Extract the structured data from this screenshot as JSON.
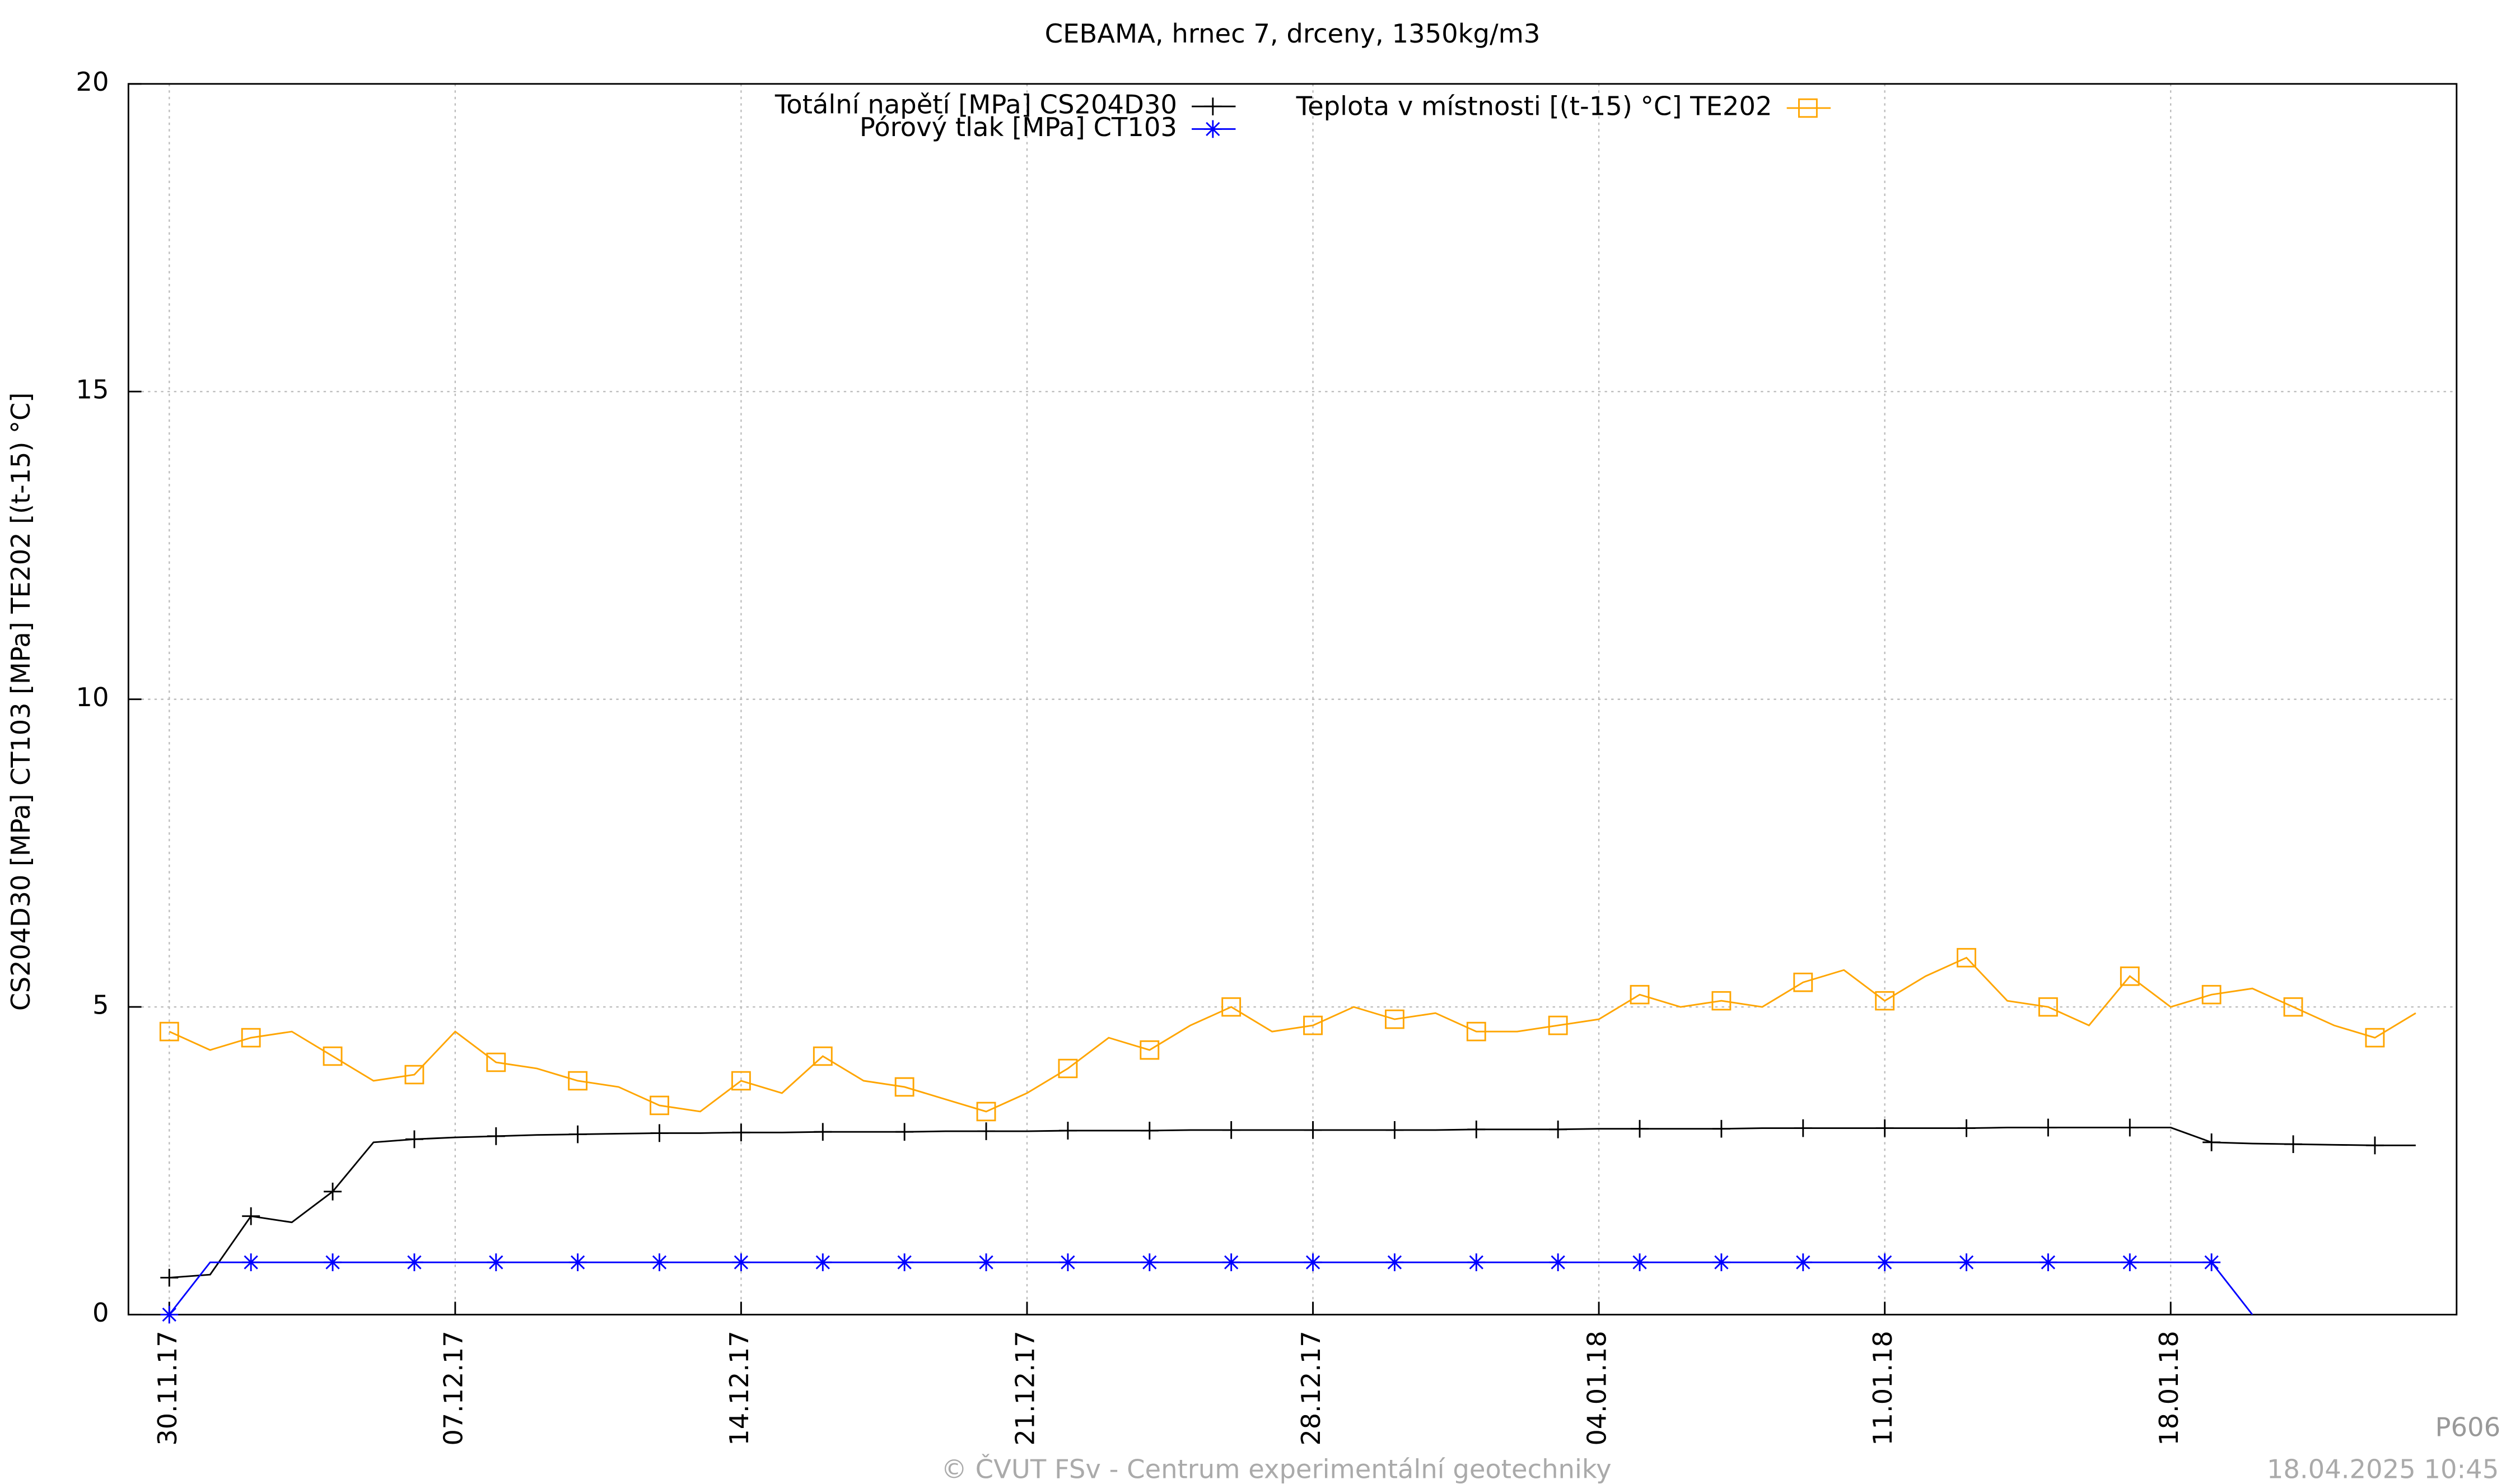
{
  "chart_data": {
    "type": "line",
    "title": "CEBAMA, hrnec 7, drceny, 1350kg/m3",
    "y_label": "CS204D30 [MPa] CT103 [MPa] TE202 [(t-15) °C]",
    "watermark": "P606",
    "footer": "© ČVUT FSv - Centrum experimentální geotechniky",
    "timestamp": "18.04.2025 10:45",
    "x": [
      "30.11.17",
      "01.12.17",
      "02.12.17",
      "03.12.17",
      "04.12.17",
      "05.12.17",
      "06.12.17",
      "07.12.17",
      "08.12.17",
      "09.12.17",
      "10.12.17",
      "11.12.17",
      "12.12.17",
      "13.12.17",
      "14.12.17",
      "15.12.17",
      "16.12.17",
      "17.12.17",
      "18.12.17",
      "19.12.17",
      "20.12.17",
      "21.12.17",
      "22.12.17",
      "23.12.17",
      "24.12.17",
      "25.12.17",
      "26.12.17",
      "27.12.17",
      "28.12.17",
      "29.12.17",
      "30.12.17",
      "31.12.17",
      "01.01.18",
      "02.01.18",
      "03.01.18",
      "04.01.18",
      "05.01.18",
      "06.01.18",
      "07.01.18",
      "08.01.18",
      "09.01.18",
      "10.01.18",
      "11.01.18",
      "12.01.18",
      "13.01.18",
      "14.01.18",
      "15.01.18",
      "16.01.18",
      "17.01.18",
      "18.01.18",
      "19.01.18",
      "20.01.18",
      "21.01.18",
      "22.01.18",
      "23.01.18",
      "24.01.18"
    ],
    "series": [
      {
        "name": "Totální napětí [MPa] CS204D30",
        "color": "#000000",
        "marker": "plus",
        "values": [
          0.6,
          0.65,
          1.6,
          1.5,
          2.0,
          2.8,
          2.85,
          2.88,
          2.9,
          2.92,
          2.93,
          2.94,
          2.95,
          2.95,
          2.96,
          2.96,
          2.97,
          2.97,
          2.97,
          2.98,
          2.98,
          2.98,
          2.99,
          2.99,
          2.99,
          3.0,
          3.0,
          3.0,
          3.0,
          3.0,
          3.0,
          3.0,
          3.01,
          3.01,
          3.01,
          3.02,
          3.02,
          3.02,
          3.02,
          3.03,
          3.03,
          3.03,
          3.03,
          3.03,
          3.03,
          3.04,
          3.04,
          3.04,
          3.04,
          3.04,
          2.8,
          2.78,
          2.77,
          2.76,
          2.75,
          2.75
        ]
      },
      {
        "name": "Pórový tlak [MPa] CT103",
        "color": "#0000ff",
        "marker": "star",
        "values": [
          0,
          0.85,
          0.85,
          0.85,
          0.85,
          0.85,
          0.85,
          0.85,
          0.85,
          0.85,
          0.85,
          0.85,
          0.85,
          0.85,
          0.85,
          0.85,
          0.85,
          0.85,
          0.85,
          0.85,
          0.85,
          0.85,
          0.85,
          0.85,
          0.85,
          0.85,
          0.85,
          0.85,
          0.85,
          0.85,
          0.85,
          0.85,
          0.85,
          0.85,
          0.85,
          0.85,
          0.85,
          0.85,
          0.85,
          0.85,
          0.85,
          0.85,
          0.85,
          0.85,
          0.85,
          0.85,
          0.85,
          0.85,
          0.85,
          0.85,
          0.85,
          0,
          null,
          null,
          null,
          null
        ]
      },
      {
        "name": "Teplota v místnosti [(t-15) °C] TE202",
        "color": "#ffa500",
        "marker": "square",
        "values": [
          4.6,
          4.3,
          4.5,
          4.6,
          4.2,
          3.8,
          3.9,
          4.6,
          4.1,
          4.0,
          3.8,
          3.7,
          3.4,
          3.3,
          3.8,
          3.6,
          4.2,
          3.8,
          3.7,
          3.5,
          3.3,
          3.6,
          4.0,
          4.5,
          4.3,
          4.7,
          5.0,
          4.6,
          4.7,
          5.0,
          4.8,
          4.9,
          4.6,
          4.6,
          4.7,
          4.8,
          5.2,
          5.0,
          5.1,
          5.0,
          5.4,
          5.6,
          5.1,
          5.5,
          5.8,
          5.1,
          5.0,
          4.7,
          5.5,
          5.0,
          5.2,
          5.3,
          5.0,
          4.7,
          4.5,
          4.9
        ]
      }
    ],
    "xlim": [
      "29.11.17",
      "25.01.18"
    ],
    "xticks": [
      "30.11.17",
      "07.12.17",
      "14.12.17",
      "21.12.17",
      "28.12.17",
      "04.01.18",
      "11.01.18",
      "18.01.18"
    ],
    "ylim": [
      0,
      20
    ],
    "yticks": [
      0,
      5,
      10,
      15,
      20
    ],
    "grid": true
  }
}
